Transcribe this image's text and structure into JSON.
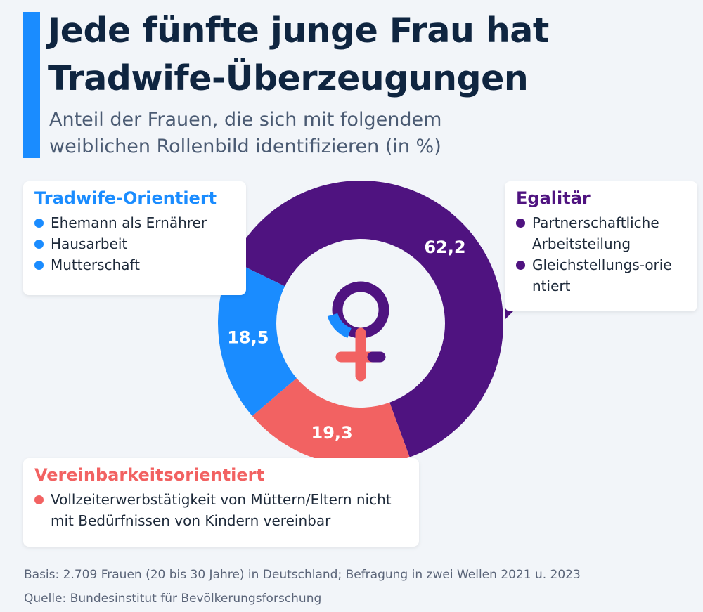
{
  "header": {
    "title_line1": "Jede fünfte junge Frau hat",
    "title_line2": "Tradwife-Überzeugungen",
    "subtitle_line1": "Anteil der Frauen, die sich mit folgendem",
    "subtitle_line2": "weiblichen Rollenbild identifizieren (in %)"
  },
  "colors": {
    "accent": "#1a8cff",
    "egalitaer": "#4f1380",
    "tradwife": "#1a8cff",
    "vereinbarkeit": "#f26262",
    "title": "#0f2540"
  },
  "chart_data": {
    "type": "pie",
    "variant": "donut",
    "center_icon": "female-symbol-icon",
    "slices": [
      {
        "name": "Egalitär",
        "value": 62.2,
        "label": "62,2",
        "color": "#4f1380"
      },
      {
        "name": "Vereinbarkeitsorientiert",
        "value": 19.3,
        "label": "19,3",
        "color": "#f26262"
      },
      {
        "name": "Tradwife-Orientiert",
        "value": 18.5,
        "label": "18,5",
        "color": "#1a8cff"
      }
    ]
  },
  "legend": {
    "tradwife": {
      "title": "Tradwife-Orientiert",
      "items": [
        "Ehemann als Ernährer",
        "Hausarbeit",
        "Mutterschaft"
      ]
    },
    "egalitaer": {
      "title": "Egalitär",
      "items": [
        "Partnerschaftliche Arbeitsteilung",
        "Gleichstellungs-orientiert"
      ]
    },
    "vereinbarkeit": {
      "title": "Vereinbarkeitsorientiert",
      "items": [
        "Vollzeiterwerbstätigkeit von Müttern/Eltern nicht mit Bedürfnissen von Kindern vereinbar"
      ]
    }
  },
  "footer": {
    "basis": "Basis: 2.709 Frauen (20 bis 30 Jahre) in Deutschland; Befragung in zwei Wellen 2021 u. 2023",
    "source": "Quelle: Bundesinstitut für Bevölkerungsforschung"
  }
}
